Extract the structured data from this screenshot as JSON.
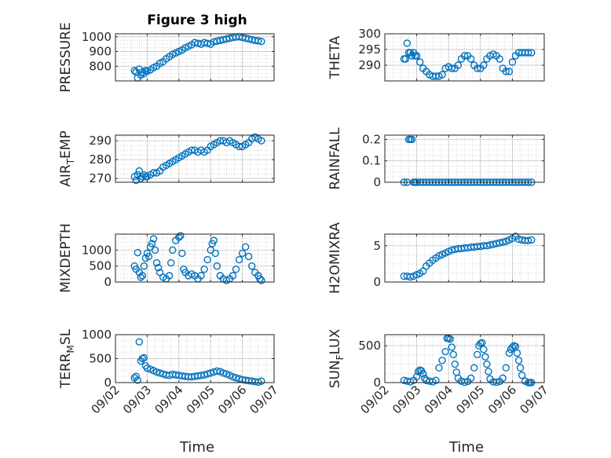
{
  "figure": {
    "title": "Figure 3 high",
    "xlabel": "Time"
  },
  "colors": {
    "marker": "#0072bd",
    "axes": "#262626",
    "grid": "#bdbdbd"
  },
  "chart_data": [
    {
      "type": "scatter",
      "title": "Figure 3 high",
      "ylabel": "PRESSURE",
      "xlim": [
        "09/02",
        "09/07"
      ],
      "ylim": [
        700,
        1020
      ],
      "xticks": [
        "09/02",
        "09/03",
        "09/04",
        "09/05",
        "09/06",
        "09/07"
      ],
      "yticks": [
        800,
        900,
        1000
      ],
      "show_xticklabels": false,
      "grid": true,
      "x": [
        2.6,
        2.65,
        2.7,
        2.75,
        2.8,
        2.85,
        2.9,
        2.95,
        3.0,
        3.1,
        3.2,
        3.3,
        3.4,
        3.5,
        3.6,
        3.7,
        3.8,
        3.9,
        4.0,
        4.1,
        4.2,
        4.3,
        4.4,
        4.5,
        4.6,
        4.7,
        4.8,
        4.9,
        5.0,
        5.1,
        5.2,
        5.3,
        5.4,
        5.5,
        5.6,
        5.7,
        5.8,
        5.9,
        6.0,
        6.1,
        6.2,
        6.3,
        6.4,
        6.5,
        6.6
      ],
      "y": [
        770,
        760,
        720,
        780,
        740,
        760,
        750,
        770,
        765,
        775,
        790,
        800,
        820,
        830,
        850,
        865,
        880,
        890,
        900,
        910,
        925,
        935,
        945,
        960,
        955,
        950,
        960,
        955,
        950,
        965,
        970,
        975,
        980,
        985,
        990,
        995,
        998,
        1000,
        995,
        990,
        985,
        980,
        975,
        972,
        968
      ]
    },
    {
      "type": "scatter",
      "ylabel": "THETA",
      "xlim": [
        "09/02",
        "09/07"
      ],
      "ylim": [
        285,
        300
      ],
      "xticks": [
        "09/02",
        "09/03",
        "09/04",
        "09/05",
        "09/06",
        "09/07"
      ],
      "yticks": [
        290,
        295,
        300
      ],
      "show_xticklabels": false,
      "grid": true,
      "x": [
        2.6,
        2.65,
        2.7,
        2.75,
        2.8,
        2.85,
        2.9,
        2.95,
        3.0,
        3.1,
        3.2,
        3.3,
        3.4,
        3.5,
        3.6,
        3.7,
        3.8,
        3.9,
        4.0,
        4.1,
        4.2,
        4.3,
        4.4,
        4.5,
        4.6,
        4.7,
        4.8,
        4.9,
        5.0,
        5.1,
        5.2,
        5.3,
        5.4,
        5.5,
        5.6,
        5.7,
        5.8,
        5.9,
        6.0,
        6.1,
        6.2,
        6.3,
        6.4,
        6.5,
        6.6
      ],
      "y": [
        292,
        292,
        297,
        294,
        294,
        293,
        294,
        293,
        293,
        291,
        289,
        288,
        287,
        286.5,
        286.5,
        286.5,
        287,
        289,
        289.5,
        289,
        289,
        290,
        292,
        293,
        293,
        292,
        290,
        289,
        289,
        290,
        292,
        293,
        293.5,
        293,
        292,
        289,
        288,
        288,
        291,
        293,
        294,
        294,
        294,
        294,
        294
      ]
    },
    {
      "type": "scatter",
      "ylabel": "AIR_TEMP",
      "xlim": [
        "09/02",
        "09/07"
      ],
      "ylim": [
        268,
        293
      ],
      "xticks": [
        "09/02",
        "09/03",
        "09/04",
        "09/05",
        "09/06",
        "09/07"
      ],
      "yticks": [
        270,
        280,
        290
      ],
      "show_xticklabels": false,
      "grid": true,
      "x": [
        2.6,
        2.65,
        2.7,
        2.75,
        2.8,
        2.85,
        2.9,
        2.95,
        3.0,
        3.1,
        3.2,
        3.3,
        3.4,
        3.5,
        3.6,
        3.7,
        3.8,
        3.9,
        4.0,
        4.1,
        4.2,
        4.3,
        4.4,
        4.5,
        4.6,
        4.7,
        4.8,
        4.9,
        5.0,
        5.1,
        5.2,
        5.3,
        5.4,
        5.5,
        5.6,
        5.7,
        5.8,
        5.9,
        6.0,
        6.1,
        6.2,
        6.3,
        6.4,
        6.5,
        6.6
      ],
      "y": [
        271,
        269,
        272,
        274,
        270,
        271,
        272,
        271,
        271,
        272,
        273,
        273,
        274,
        276,
        277,
        278,
        279,
        280,
        281,
        282,
        283,
        284,
        285,
        285,
        284,
        285,
        284,
        285,
        287,
        288,
        289,
        290,
        290,
        289,
        290,
        289,
        288,
        287,
        287,
        288,
        289,
        291,
        292,
        291,
        290
      ]
    },
    {
      "type": "scatter",
      "ylabel": "RAINFALL",
      "xlim": [
        "09/02",
        "09/07"
      ],
      "ylim": [
        0,
        0.22
      ],
      "xticks": [
        "09/02",
        "09/03",
        "09/04",
        "09/05",
        "09/06",
        "09/07"
      ],
      "yticks": [
        0,
        0.1,
        0.2
      ],
      "show_xticklabels": false,
      "grid": true,
      "x": [
        2.6,
        2.7,
        2.75,
        2.8,
        2.85,
        2.9,
        2.95,
        3.0,
        3.1,
        3.2,
        3.3,
        3.4,
        3.5,
        3.6,
        3.7,
        3.8,
        3.9,
        4.0,
        4.1,
        4.2,
        4.3,
        4.4,
        4.5,
        4.6,
        4.7,
        4.8,
        4.9,
        5.0,
        5.1,
        5.2,
        5.3,
        5.4,
        5.5,
        5.6,
        5.7,
        5.8,
        5.9,
        6.0,
        6.1,
        6.2,
        6.3,
        6.4,
        6.5,
        6.6
      ],
      "y": [
        0,
        0,
        0.2,
        0.2,
        0.2,
        0,
        0,
        0,
        0,
        0,
        0,
        0,
        0,
        0,
        0,
        0,
        0,
        0,
        0,
        0,
        0,
        0,
        0,
        0,
        0,
        0,
        0,
        0,
        0,
        0,
        0,
        0,
        0,
        0,
        0,
        0,
        0,
        0,
        0,
        0,
        0,
        0,
        0,
        0
      ]
    },
    {
      "type": "scatter",
      "ylabel": "MIXDEPTH",
      "xlim": [
        "09/02",
        "09/07"
      ],
      "ylim": [
        0,
        1500
      ],
      "xticks": [
        "09/02",
        "09/03",
        "09/04",
        "09/05",
        "09/06",
        "09/07"
      ],
      "yticks": [
        0,
        500,
        1000
      ],
      "show_xticklabels": false,
      "grid": true,
      "x": [
        2.6,
        2.65,
        2.7,
        2.75,
        2.8,
        2.85,
        2.9,
        2.95,
        3.0,
        3.05,
        3.1,
        3.15,
        3.2,
        3.25,
        3.3,
        3.35,
        3.4,
        3.5,
        3.6,
        3.7,
        3.75,
        3.8,
        3.9,
        4.0,
        4.05,
        4.1,
        4.15,
        4.2,
        4.3,
        4.4,
        4.5,
        4.6,
        4.7,
        4.8,
        4.9,
        5.0,
        5.05,
        5.1,
        5.15,
        5.2,
        5.3,
        5.4,
        5.5,
        5.6,
        5.7,
        5.8,
        5.9,
        6.0,
        6.1,
        6.2,
        6.3,
        6.4,
        6.5,
        6.55,
        6.6
      ],
      "y": [
        500,
        400,
        920,
        300,
        150,
        200,
        500,
        750,
        900,
        800,
        1100,
        1200,
        1350,
        1000,
        600,
        450,
        300,
        150,
        100,
        200,
        600,
        1000,
        1300,
        1400,
        1450,
        900,
        400,
        300,
        200,
        250,
        200,
        100,
        200,
        400,
        700,
        1000,
        1200,
        1300,
        900,
        500,
        200,
        100,
        50,
        100,
        200,
        400,
        700,
        900,
        1100,
        800,
        500,
        300,
        200,
        100,
        50
      ]
    },
    {
      "type": "scatter",
      "ylabel": "H2OMIXRA",
      "xlim": [
        "09/02",
        "09/07"
      ],
      "ylim": [
        0,
        6.6
      ],
      "xticks": [
        "09/02",
        "09/03",
        "09/04",
        "09/05",
        "09/06",
        "09/07"
      ],
      "yticks": [
        0,
        5
      ],
      "show_xticklabels": false,
      "grid": true,
      "x": [
        2.6,
        2.7,
        2.8,
        2.9,
        3.0,
        3.1,
        3.2,
        3.3,
        3.4,
        3.5,
        3.6,
        3.7,
        3.8,
        3.9,
        4.0,
        4.1,
        4.2,
        4.3,
        4.4,
        4.5,
        4.6,
        4.7,
        4.8,
        4.9,
        5.0,
        5.1,
        5.2,
        5.3,
        5.4,
        5.5,
        5.6,
        5.7,
        5.8,
        5.9,
        6.0,
        6.1,
        6.2,
        6.3,
        6.4,
        6.5,
        6.6
      ],
      "y": [
        0.8,
        0.8,
        0.7,
        0.8,
        1.0,
        1.2,
        1.5,
        2.2,
        2.6,
        3.0,
        3.3,
        3.6,
        3.8,
        4.0,
        4.2,
        4.4,
        4.5,
        4.6,
        4.6,
        4.7,
        4.7,
        4.8,
        4.8,
        4.9,
        4.9,
        5.0,
        5.0,
        5.1,
        5.2,
        5.3,
        5.4,
        5.5,
        5.6,
        5.8,
        6.0,
        6.3,
        5.9,
        5.8,
        5.7,
        5.7,
        5.8
      ]
    },
    {
      "type": "scatter",
      "ylabel": "TERR_MSL",
      "xlim": [
        "09/02",
        "09/07"
      ],
      "ylim": [
        0,
        1000
      ],
      "xticks": [
        "09/02",
        "09/03",
        "09/04",
        "09/05",
        "09/06",
        "09/07"
      ],
      "yticks": [
        0,
        500,
        1000
      ],
      "show_xticklabels": true,
      "grid": true,
      "x": [
        2.6,
        2.65,
        2.7,
        2.75,
        2.8,
        2.85,
        2.9,
        2.95,
        3.0,
        3.1,
        3.2,
        3.3,
        3.4,
        3.5,
        3.6,
        3.7,
        3.8,
        3.9,
        4.0,
        4.1,
        4.2,
        4.3,
        4.4,
        4.5,
        4.6,
        4.7,
        4.8,
        4.9,
        5.0,
        5.1,
        5.2,
        5.3,
        5.4,
        5.5,
        5.6,
        5.7,
        5.8,
        5.9,
        6.0,
        6.1,
        6.2,
        6.3,
        6.4,
        6.5,
        6.6
      ],
      "y": [
        100,
        130,
        50,
        850,
        450,
        500,
        520,
        350,
        300,
        280,
        250,
        220,
        200,
        180,
        160,
        150,
        170,
        160,
        150,
        140,
        130,
        120,
        120,
        130,
        140,
        150,
        160,
        180,
        200,
        220,
        240,
        230,
        200,
        180,
        150,
        120,
        100,
        80,
        60,
        50,
        40,
        30,
        20,
        10,
        30
      ]
    },
    {
      "type": "scatter",
      "ylabel": "SUN_FLUX",
      "xlim": [
        "09/02",
        "09/07"
      ],
      "ylim": [
        0,
        650
      ],
      "xticks": [
        "09/02",
        "09/03",
        "09/04",
        "09/05",
        "09/06",
        "09/07"
      ],
      "yticks": [
        0,
        500
      ],
      "show_xticklabels": true,
      "grid": true,
      "x": [
        2.6,
        2.7,
        2.8,
        2.9,
        3.0,
        3.05,
        3.1,
        3.15,
        3.2,
        3.25,
        3.3,
        3.4,
        3.5,
        3.6,
        3.7,
        3.8,
        3.9,
        3.95,
        4.0,
        4.05,
        4.1,
        4.15,
        4.2,
        4.25,
        4.3,
        4.4,
        4.5,
        4.6,
        4.7,
        4.8,
        4.9,
        4.95,
        5.0,
        5.05,
        5.1,
        5.15,
        5.2,
        5.25,
        5.3,
        5.4,
        5.5,
        5.6,
        5.7,
        5.8,
        5.9,
        5.95,
        6.0,
        6.05,
        6.1,
        6.15,
        6.2,
        6.25,
        6.3,
        6.4,
        6.5,
        6.55,
        6.6
      ],
      "y": [
        30,
        20,
        10,
        30,
        80,
        150,
        170,
        160,
        120,
        60,
        30,
        20,
        10,
        30,
        200,
        300,
        420,
        600,
        600,
        590,
        480,
        380,
        250,
        140,
        60,
        20,
        5,
        15,
        60,
        200,
        380,
        500,
        530,
        540,
        450,
        350,
        250,
        150,
        50,
        10,
        5,
        15,
        60,
        200,
        400,
        450,
        480,
        500,
        490,
        400,
        300,
        200,
        100,
        20,
        0,
        0,
        0
      ]
    }
  ]
}
